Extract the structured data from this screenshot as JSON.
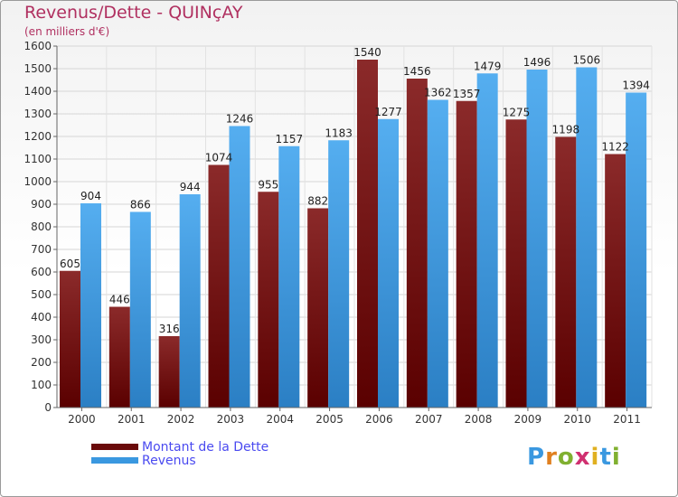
{
  "title": "Revenus/Dette - QUINçAY",
  "subtitle": "(en milliers d'€)",
  "logo": "Proxiti",
  "colors": {
    "dette": "#7a1010",
    "revenus": "#3a98e0",
    "title": "#b03060",
    "legend_text": "#4a4af0"
  },
  "chart_data": {
    "type": "bar",
    "categories": [
      "2000",
      "2001",
      "2002",
      "2003",
      "2004",
      "2005",
      "2006",
      "2007",
      "2008",
      "2009",
      "2010",
      "2011"
    ],
    "series": [
      {
        "name": "Montant de la Dette",
        "values": [
          605,
          446,
          316,
          1074,
          955,
          882,
          1540,
          1456,
          1357,
          1275,
          1198,
          1122
        ]
      },
      {
        "name": "Revenus",
        "values": [
          904,
          866,
          944,
          1246,
          1157,
          1183,
          1277,
          1362,
          1479,
          1496,
          1506,
          1394
        ]
      }
    ],
    "ylim": [
      0,
      1600
    ],
    "yticks": [
      0,
      100,
      200,
      300,
      400,
      500,
      600,
      700,
      800,
      900,
      1000,
      1100,
      1200,
      1300,
      1400,
      1500,
      1600
    ],
    "grid": true,
    "legend_position": "bottom-left"
  }
}
